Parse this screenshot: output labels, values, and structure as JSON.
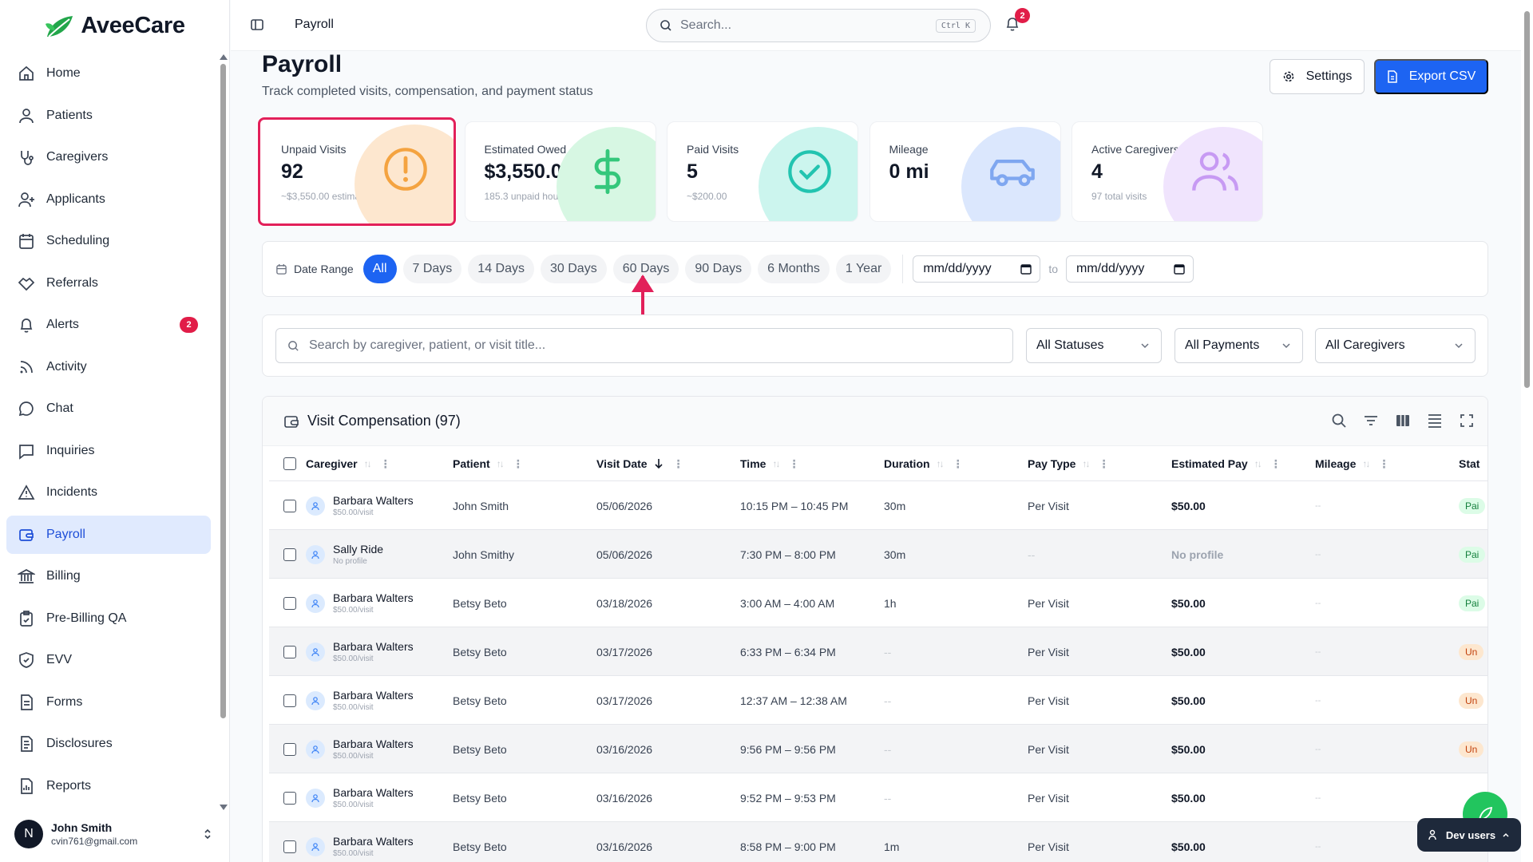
{
  "app": {
    "name": "AveeCare"
  },
  "sidebar": {
    "items": [
      {
        "label": "Home",
        "icon": "home-icon"
      },
      {
        "label": "Patients",
        "icon": "user-icon"
      },
      {
        "label": "Caregivers",
        "icon": "stethoscope-icon"
      },
      {
        "label": "Applicants",
        "icon": "user-plus-icon"
      },
      {
        "label": "Scheduling",
        "icon": "calendar-icon"
      },
      {
        "label": "Referrals",
        "icon": "handshake-icon"
      },
      {
        "label": "Alerts",
        "icon": "bell-icon",
        "badge": "2"
      },
      {
        "label": "Activity",
        "icon": "rss-icon"
      },
      {
        "label": "Chat",
        "icon": "chat-icon"
      },
      {
        "label": "Inquiries",
        "icon": "message-square-icon"
      },
      {
        "label": "Incidents",
        "icon": "warning-icon"
      },
      {
        "label": "Payroll",
        "icon": "wallet-icon",
        "active": true
      },
      {
        "label": "Billing",
        "icon": "bank-icon"
      },
      {
        "label": "Pre-Billing QA",
        "icon": "clipboard-check-icon"
      },
      {
        "label": "EVV",
        "icon": "shield-check-icon"
      },
      {
        "label": "Forms",
        "icon": "file-text-icon"
      },
      {
        "label": "Disclosures",
        "icon": "document-icon"
      },
      {
        "label": "Reports",
        "icon": "report-icon"
      }
    ],
    "user": {
      "initial": "N",
      "name": "John Smith",
      "email": "cvin761@gmail.com"
    }
  },
  "topbar": {
    "breadcrumb": "Payroll",
    "search_placeholder": "Search...",
    "search_shortcut": "Ctrl K",
    "notification_count": "2"
  },
  "page": {
    "title": "Payroll",
    "subtitle": "Track completed visits, compensation, and payment status",
    "settings_label": "Settings",
    "export_label": "Export CSV"
  },
  "stats": [
    {
      "label": "Unpaid Visits",
      "value": "92",
      "sub": "~$3,550.00 estimated",
      "color": "#fde7cf",
      "icon": "alert-circle-icon",
      "icon_color": "#f4a340"
    },
    {
      "label": "Estimated Owed",
      "value": "$3,550.00",
      "sub": "185.3 unpaid hours",
      "color": "#d7f7e3",
      "icon": "dollar-icon",
      "icon_color": "#34c77b"
    },
    {
      "label": "Paid Visits",
      "value": "5",
      "sub": "~$200.00",
      "color": "#ccf5ee",
      "icon": "check-circle-icon",
      "icon_color": "#22c4b0"
    },
    {
      "label": "Mileage",
      "value": "0 mi",
      "sub": "",
      "color": "#dbe7fd",
      "icon": "car-icon",
      "icon_color": "#7fa7f0"
    },
    {
      "label": "Active Caregivers",
      "value": "4",
      "sub": "97 total visits",
      "color": "#f0e4fd",
      "icon": "users-icon",
      "icon_color": "#c79af3"
    }
  ],
  "date_range": {
    "label": "Date Range",
    "options": [
      "All",
      "7 Days",
      "14 Days",
      "30 Days",
      "60 Days",
      "90 Days",
      "6 Months",
      "1 Year"
    ],
    "active": "All",
    "from_placeholder": "mm/dd/yyyy",
    "to_label": "to",
    "to_placeholder": "mm/dd/yyyy"
  },
  "filters": {
    "search_placeholder": "Search by caregiver, patient, or visit title...",
    "status": "All Statuses",
    "payment": "All Payments",
    "caregiver": "All Caregivers"
  },
  "table": {
    "title": "Visit Compensation (97)",
    "columns": [
      "Caregiver",
      "Patient",
      "Visit Date",
      "Time",
      "Duration",
      "Pay Type",
      "Estimated Pay",
      "Mileage",
      "Stat"
    ],
    "rows": [
      {
        "caregiver": "Barbara Walters",
        "rate": "$50.00/visit",
        "patient": "John Smith",
        "date": "05/06/2026",
        "time": "10:15 PM – 10:45 PM",
        "duration": "30m",
        "pay_type": "Per Visit",
        "est_pay": "$50.00",
        "mileage": "--",
        "status": "Pai",
        "status_kind": "paid"
      },
      {
        "caregiver": "Sally Ride",
        "rate": "No profile",
        "patient": "John Smithy",
        "date": "05/06/2026",
        "time": "7:30 PM – 8:00 PM",
        "duration": "30m",
        "pay_type": "--",
        "est_pay": "No profile",
        "mileage": "--",
        "status": "Pai",
        "status_kind": "paid"
      },
      {
        "caregiver": "Barbara Walters",
        "rate": "$50.00/visit",
        "patient": "Betsy Beto",
        "date": "03/18/2026",
        "time": "3:00 AM – 4:00 AM",
        "duration": "1h",
        "pay_type": "Per Visit",
        "est_pay": "$50.00",
        "mileage": "--",
        "status": "Pai",
        "status_kind": "paid"
      },
      {
        "caregiver": "Barbara Walters",
        "rate": "$50.00/visit",
        "patient": "Betsy Beto",
        "date": "03/17/2026",
        "time": "6:33 PM – 6:34 PM",
        "duration": "--",
        "pay_type": "Per Visit",
        "est_pay": "$50.00",
        "mileage": "--",
        "status": "Un",
        "status_kind": "unpaid"
      },
      {
        "caregiver": "Barbara Walters",
        "rate": "$50.00/visit",
        "patient": "Betsy Beto",
        "date": "03/17/2026",
        "time": "12:37 AM – 12:38 AM",
        "duration": "--",
        "pay_type": "Per Visit",
        "est_pay": "$50.00",
        "mileage": "--",
        "status": "Un",
        "status_kind": "unpaid"
      },
      {
        "caregiver": "Barbara Walters",
        "rate": "$50.00/visit",
        "patient": "Betsy Beto",
        "date": "03/16/2026",
        "time": "9:56 PM – 9:56 PM",
        "duration": "--",
        "pay_type": "Per Visit",
        "est_pay": "$50.00",
        "mileage": "--",
        "status": "Un",
        "status_kind": "unpaid"
      },
      {
        "caregiver": "Barbara Walters",
        "rate": "$50.00/visit",
        "patient": "Betsy Beto",
        "date": "03/16/2026",
        "time": "9:52 PM – 9:53 PM",
        "duration": "--",
        "pay_type": "Per Visit",
        "est_pay": "$50.00",
        "mileage": "--",
        "status": "",
        "status_kind": "none"
      },
      {
        "caregiver": "Barbara Walters",
        "rate": "$50.00/visit",
        "patient": "Betsy Beto",
        "date": "03/16/2026",
        "time": "8:58 PM – 9:00 PM",
        "duration": "1m",
        "pay_type": "Per Visit",
        "est_pay": "$50.00",
        "mileage": "--",
        "status": "",
        "status_kind": "none"
      }
    ]
  },
  "widgets": {
    "dev_users_label": "Dev users"
  }
}
